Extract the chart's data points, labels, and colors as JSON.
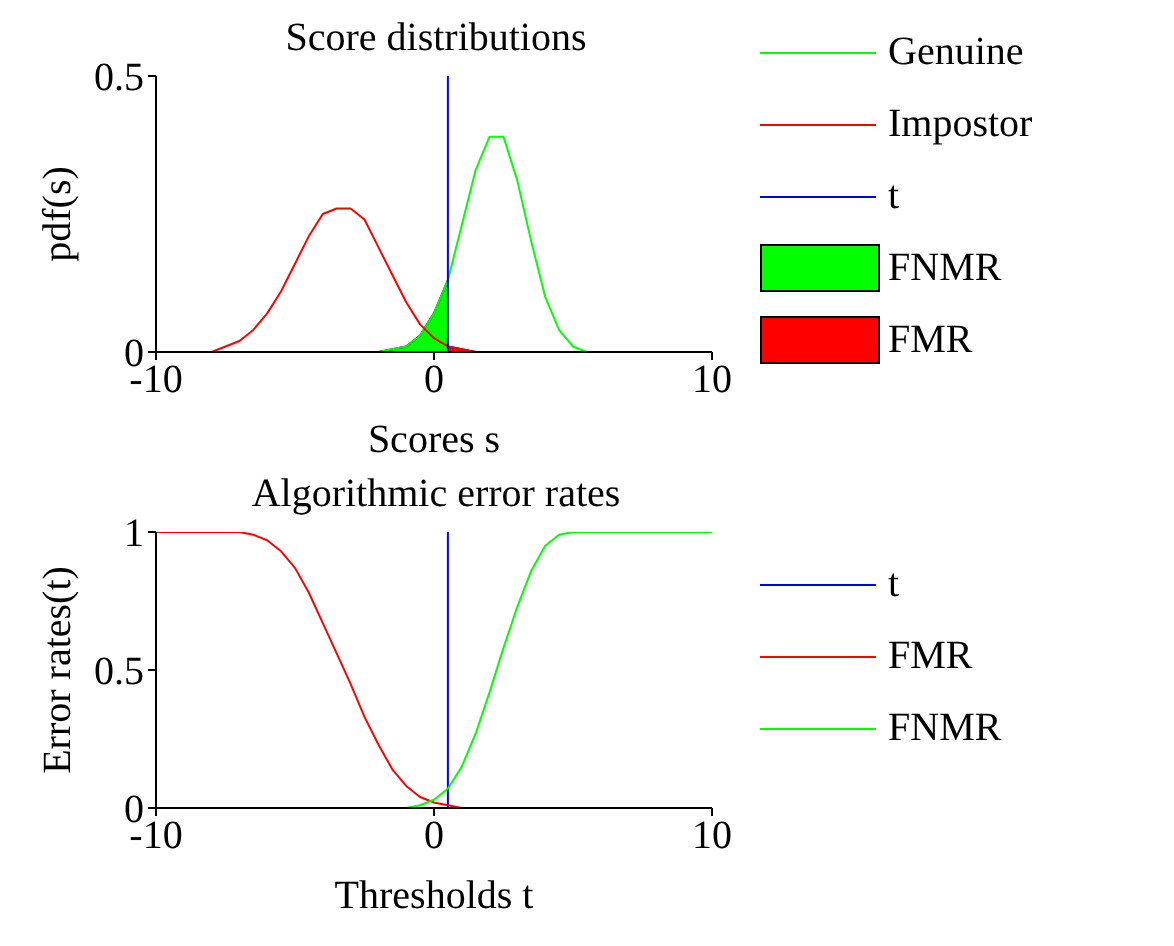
{
  "chart_data": [
    {
      "type": "line",
      "title": "Score distributions",
      "xlabel": "Scores s",
      "ylabel": "pdf(s)",
      "xlim": [
        -10,
        10
      ],
      "xticks": [
        -10,
        0,
        10
      ],
      "ylim": [
        0,
        0.5
      ],
      "yticks": [
        0,
        0.5
      ],
      "grid": false,
      "legend": "right",
      "marker": "none",
      "series": [
        {
          "name": "Genuine",
          "color": "#00ff00",
          "x": [
            -10,
            -2,
            -1,
            -0.5,
            0,
            0.5,
            1,
            1.5,
            2,
            2.5,
            3,
            3.5,
            4,
            4.5,
            5,
            5.5,
            6,
            10
          ],
          "values": [
            0,
            0,
            0.01,
            0.03,
            0.07,
            0.13,
            0.23,
            0.33,
            0.39,
            0.39,
            0.31,
            0.2,
            0.1,
            0.04,
            0.01,
            0,
            0,
            0
          ]
        },
        {
          "name": "Impostor",
          "color": "#ff0000",
          "x": [
            -10,
            -8,
            -7.5,
            -7,
            -6.5,
            -6,
            -5.5,
            -5,
            -4.5,
            -4,
            -3.5,
            -3,
            -2.5,
            -2,
            -1.5,
            -1,
            -0.5,
            0,
            0.5,
            1,
            1.5,
            2,
            10
          ],
          "values": [
            0,
            0,
            0.01,
            0.02,
            0.04,
            0.07,
            0.11,
            0.16,
            0.21,
            0.25,
            0.26,
            0.26,
            0.24,
            0.19,
            0.14,
            0.09,
            0.05,
            0.025,
            0.01,
            0.005,
            0,
            0,
            0
          ]
        },
        {
          "name": "t",
          "color": "#0000ff",
          "x": [
            0.5,
            0.5
          ],
          "values": [
            0,
            0.5
          ]
        },
        {
          "name": "FNMR",
          "type": "area",
          "color": "#00ff00",
          "x": [
            -2,
            -1,
            -0.5,
            0,
            0.5
          ],
          "values": [
            0,
            0.01,
            0.03,
            0.07,
            0.13
          ]
        },
        {
          "name": "FMR",
          "type": "area",
          "color": "#ff0000",
          "x": [
            0.5,
            1,
            1.5
          ],
          "values": [
            0.01,
            0.005,
            0
          ]
        }
      ]
    },
    {
      "type": "line",
      "title": "Algorithmic error rates",
      "xlabel": "Thresholds t",
      "ylabel": "Error rates(t)",
      "xlim": [
        -10,
        10
      ],
      "xticks": [
        -10,
        0,
        10
      ],
      "ylim": [
        0,
        1
      ],
      "yticks": [
        0,
        0.5,
        1
      ],
      "grid": false,
      "legend": "right",
      "marker": "none",
      "series": [
        {
          "name": "t",
          "color": "#0000ff",
          "x": [
            0.5,
            0.5
          ],
          "values": [
            0,
            1
          ]
        },
        {
          "name": "FMR",
          "color": "#ff0000",
          "x": [
            -10,
            -7,
            -6.5,
            -6,
            -5.5,
            -5,
            -4.5,
            -4,
            -3.5,
            -3,
            -2.5,
            -2,
            -1.5,
            -1,
            -0.5,
            0,
            0.5,
            1,
            10
          ],
          "values": [
            1,
            1,
            0.99,
            0.97,
            0.93,
            0.87,
            0.78,
            0.67,
            0.56,
            0.45,
            0.33,
            0.23,
            0.14,
            0.08,
            0.04,
            0.02,
            0.01,
            0,
            0
          ]
        },
        {
          "name": "FNMR",
          "color": "#00ff00",
          "x": [
            -10,
            -1,
            -0.5,
            0,
            0.5,
            1,
            1.5,
            2,
            2.5,
            3,
            3.5,
            4,
            4.5,
            5,
            10
          ],
          "values": [
            0,
            0,
            0.01,
            0.03,
            0.07,
            0.15,
            0.27,
            0.42,
            0.58,
            0.73,
            0.86,
            0.95,
            0.99,
            1,
            1
          ]
        }
      ]
    }
  ]
}
